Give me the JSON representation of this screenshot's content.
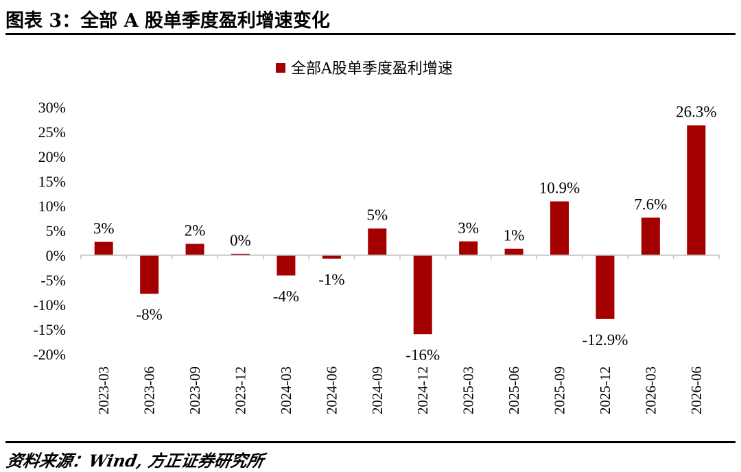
{
  "figure": {
    "title": "图表 3：全部 A 股单季度盈利增速变化",
    "source": "资料来源：Wind, 方正证券研究所"
  },
  "chart_data": {
    "type": "bar",
    "title": "",
    "xlabel": "",
    "ylabel": "",
    "ylim": [
      -20,
      30
    ],
    "yticks": [
      30,
      25,
      20,
      15,
      10,
      5,
      0,
      -5,
      -10,
      -15,
      -20
    ],
    "ytick_labels": [
      "30%",
      "25%",
      "20%",
      "15%",
      "10%",
      "5%",
      "0%",
      "-5%",
      "-10%",
      "-15%",
      "-20%"
    ],
    "legend_position": "top-center",
    "grid": false,
    "categories": [
      "2023-03",
      "2023-06",
      "2023-09",
      "2023-12",
      "2024-03",
      "2024-06",
      "2024-09",
      "2024-12",
      "2025-03",
      "2025-06",
      "2025-09",
      "2025-12",
      "2026-03",
      "2026-06"
    ],
    "series": [
      {
        "name": "全部A股单季度盈利增速",
        "color": "#A50000",
        "values": [
          2.7,
          -7.8,
          2.3,
          0.3,
          -4.1,
          -0.7,
          5.4,
          -16.0,
          2.8,
          1.3,
          10.9,
          -12.9,
          7.6,
          26.3
        ],
        "labels": [
          "3%",
          "-8%",
          "2%",
          "0%",
          "-4%",
          "-1%",
          "5%",
          "-16%",
          "3%",
          "1%",
          "10.9%",
          "-12.9%",
          "7.6%",
          "26.3%"
        ]
      }
    ]
  }
}
